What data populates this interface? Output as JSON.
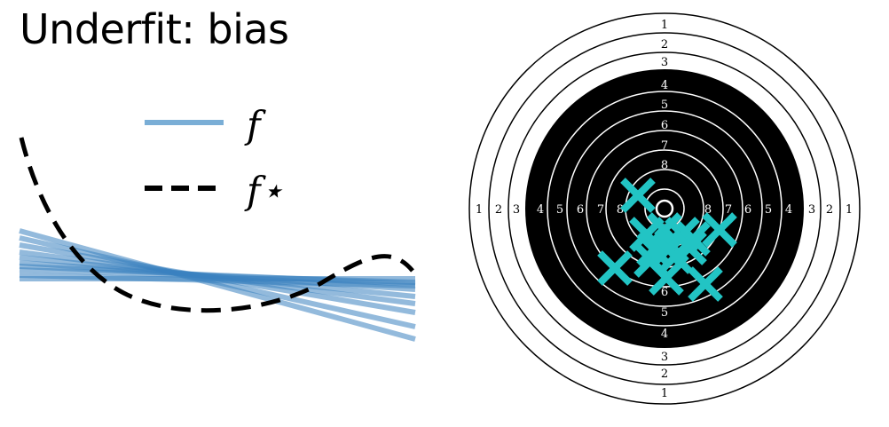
{
  "title": "Underfit: bias",
  "legend": {
    "items": [
      {
        "label": "f",
        "style": "solid",
        "color": "#7aaed6"
      },
      {
        "label": "f⋆",
        "style": "dashed",
        "color": "#000000"
      }
    ]
  },
  "colors": {
    "fits": "#3a82bf",
    "truth": "#000000",
    "target_black": "#000000",
    "marks": "#22c4c4"
  },
  "target": {
    "ring_labels": [
      "1",
      "2",
      "3",
      "4",
      "5",
      "6",
      "7",
      "8"
    ],
    "mark_count": 14
  }
}
